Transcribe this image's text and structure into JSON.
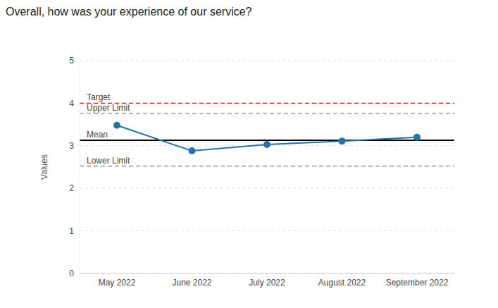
{
  "chart_data": {
    "type": "line",
    "title": "Overall, how was your experience of our service?",
    "y_label": "Values",
    "categories": [
      "May 2022",
      "June 2022",
      "July 2022",
      "August 2022",
      "September 2022"
    ],
    "series": [
      {
        "name": "Values",
        "color": "#2272a8",
        "marker": "circle",
        "line_style": "solid",
        "values": [
          3.48,
          2.88,
          3.03,
          3.11,
          3.2
        ]
      }
    ],
    "ylim": [
      0,
      5
    ],
    "yticks": [
      0,
      1,
      2,
      3,
      4,
      5
    ],
    "grid": true,
    "annotations": [
      {
        "text": "Target",
        "y": 4,
        "color": "#e31a1c",
        "line_style": "dashed"
      },
      {
        "text": "Upper Limit",
        "y": 3.76,
        "color": "#999999",
        "line_style": "dashed"
      },
      {
        "text": "Mean",
        "y": 3.13,
        "color": "#000000",
        "line_style": "solid"
      },
      {
        "text": "Lower Limit",
        "y": 2.52,
        "color": "#999999",
        "line_style": "dashed"
      }
    ]
  }
}
